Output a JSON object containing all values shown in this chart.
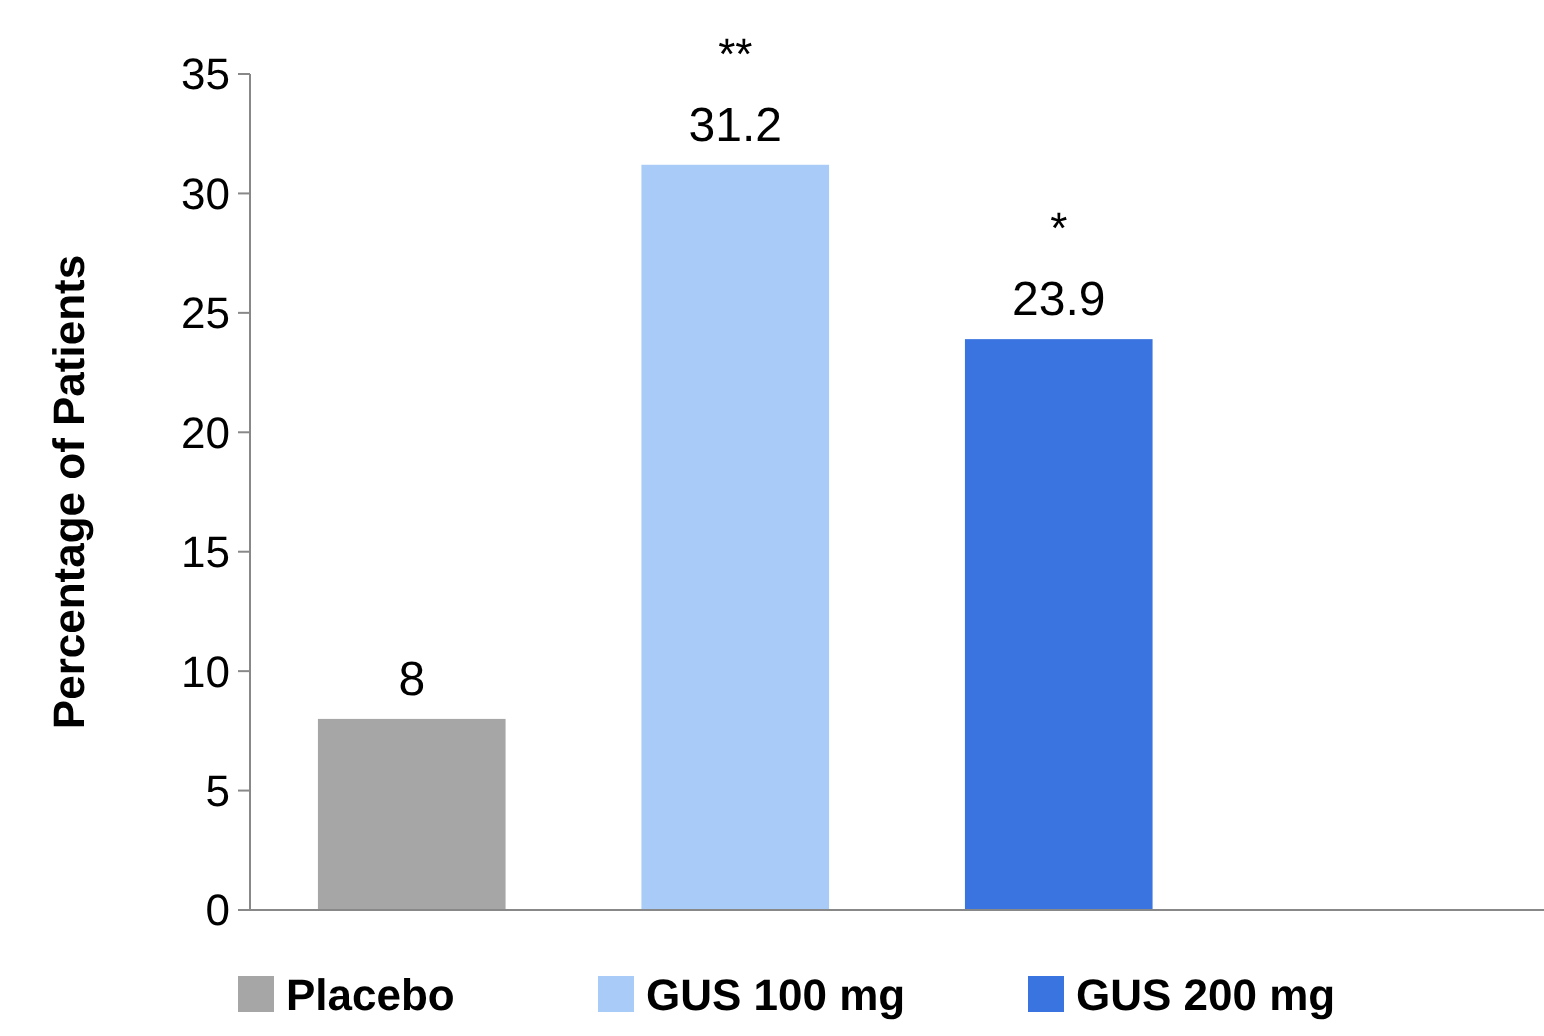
{
  "chart_data": {
    "type": "bar",
    "ylabel": "Percentage of Patients",
    "categories": [
      null,
      null,
      null,
      null
    ],
    "series": [
      {
        "name": "Placebo",
        "color": "#a6a6a6",
        "values": [
          8,
          null,
          null,
          null
        ]
      },
      {
        "name": "GUS 100 mg",
        "color": "#a9cbf7",
        "values": [
          null,
          31.2,
          null,
          null
        ]
      },
      {
        "name": "GUS 200 mg",
        "color": "#3a74e0",
        "values": [
          null,
          null,
          23.9,
          null
        ]
      }
    ],
    "ylim": [
      0,
      35
    ],
    "yticks": [
      0,
      5,
      10,
      15,
      20,
      25,
      30,
      35
    ],
    "data_labels": true,
    "legend": "bottom",
    "grid": false,
    "annotations": [
      {
        "text": "**",
        "y": 31.2
      },
      {
        "text": "*",
        "y": 23.9
      }
    ]
  }
}
